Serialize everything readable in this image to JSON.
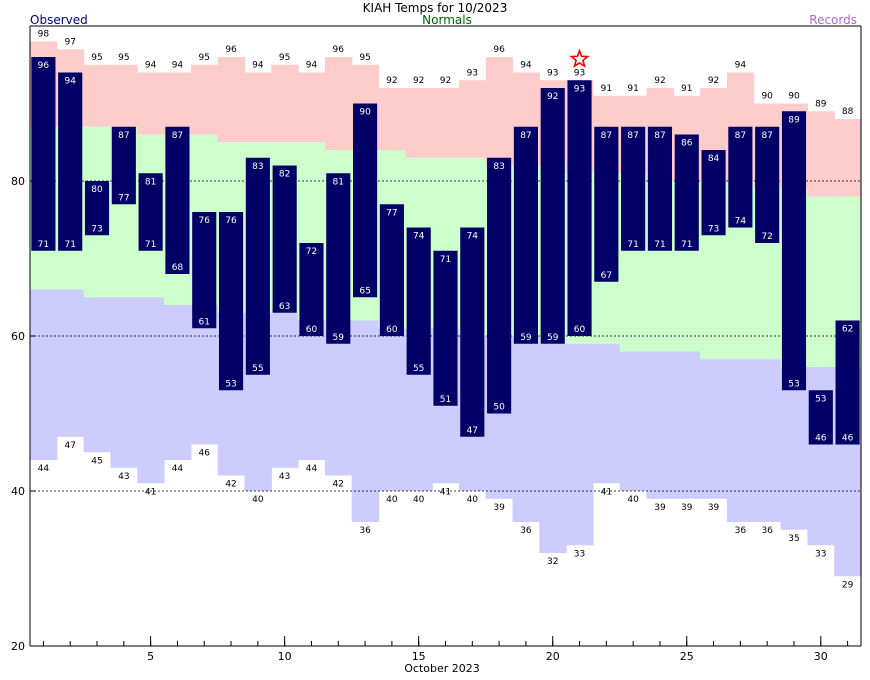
{
  "chart_data": {
    "type": "bar",
    "title": "KIAH Temps for 10/2023",
    "legend": {
      "observed": "Observed",
      "normals": "Normals",
      "records": "Records",
      "placement": "top"
    },
    "xlabel": "October 2023",
    "x_ticks": [
      "5",
      "10",
      "15",
      "20",
      "25",
      "30"
    ],
    "y_ticks": [
      "20",
      "40",
      "60",
      "80"
    ],
    "ylim": [
      20,
      100
    ],
    "xlim": [
      0.5,
      31.5
    ],
    "grid": "dashed horizontal lines at 40, 60, 80",
    "days": [
      1,
      2,
      3,
      4,
      5,
      6,
      7,
      8,
      9,
      10,
      11,
      12,
      13,
      14,
      15,
      16,
      17,
      18,
      19,
      20,
      21,
      22,
      23,
      24,
      25,
      26,
      27,
      28,
      29,
      30,
      31
    ],
    "observed_high": [
      96,
      94,
      80,
      87,
      81,
      87,
      76,
      76,
      83,
      82,
      72,
      81,
      90,
      77,
      74,
      71,
      74,
      83,
      87,
      92,
      93,
      87,
      87,
      87,
      86,
      84,
      87,
      87,
      89,
      53,
      62
    ],
    "observed_low": [
      71,
      71,
      73,
      77,
      71,
      68,
      61,
      53,
      55,
      63,
      60,
      59,
      65,
      60,
      55,
      51,
      47,
      50,
      59,
      59,
      60,
      67,
      71,
      71,
      71,
      73,
      74,
      72,
      53,
      46,
      46
    ],
    "record_high": [
      98,
      97,
      95,
      95,
      94,
      94,
      95,
      96,
      94,
      95,
      94,
      96,
      95,
      92,
      92,
      92,
      93,
      96,
      94,
      93,
      93,
      91,
      91,
      92,
      91,
      92,
      94,
      90,
      90,
      89,
      88
    ],
    "record_low": [
      44,
      47,
      45,
      43,
      41,
      44,
      46,
      42,
      40,
      43,
      44,
      42,
      36,
      40,
      40,
      41,
      40,
      39,
      36,
      32,
      33,
      41,
      40,
      39,
      39,
      39,
      36,
      36,
      35,
      33,
      29
    ],
    "normal_high": [
      87,
      87,
      87,
      87,
      86,
      86,
      86,
      85,
      85,
      85,
      85,
      84,
      84,
      84,
      83,
      83,
      83,
      82,
      82,
      82,
      81,
      81,
      81,
      80,
      80,
      80,
      80,
      79,
      79,
      78,
      78
    ],
    "normal_low": [
      66,
      66,
      65,
      65,
      65,
      64,
      64,
      63,
      63,
      63,
      62,
      62,
      62,
      61,
      61,
      61,
      60,
      60,
      60,
      59,
      59,
      59,
      58,
      58,
      58,
      57,
      57,
      57,
      56,
      56,
      56
    ],
    "record_marker_day": 21,
    "colors": {
      "observed": "#000066",
      "observed_label": "#000080",
      "normals": "#006600",
      "records": "#b266cc",
      "record_high_band": "#ffcccc",
      "normal_band": "#ccffcc",
      "record_low_band": "#ccccff",
      "star": "#ff0000",
      "grid": "#000000"
    }
  }
}
